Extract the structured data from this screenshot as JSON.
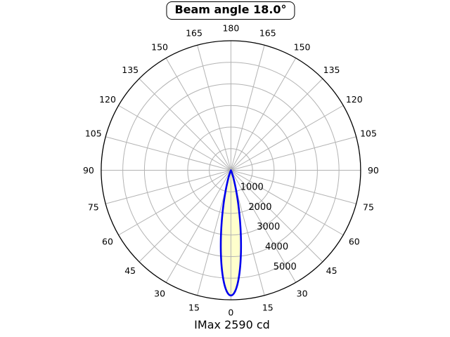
{
  "title": "Beam angle 18.0°",
  "footer": "IMax 2590 cd",
  "chart_data": {
    "type": "polar",
    "title": "Beam angle 18.0°",
    "footnote": "IMax 2590 cd",
    "orientation": "0-degrees-at-bottom",
    "angle_ticks_deg": [
      0,
      15,
      30,
      45,
      60,
      75,
      90,
      105,
      120,
      135,
      150,
      165,
      180
    ],
    "angle_ticks_mirrored_both_sides": true,
    "radial_ticks": [
      1000,
      2000,
      3000,
      4000,
      5000
    ],
    "radial_tick_labels": [
      "1000",
      "2000",
      "3000",
      "4000",
      "5000"
    ],
    "r_max": 6000,
    "radial_label_angle_deg": 22.5,
    "grid": true,
    "beam": {
      "beam_angle_deg": 18.0,
      "fwhm_deg": 18.0,
      "peak_plot_value": 5800,
      "imax_cd": 2590,
      "profile": "gaussian",
      "curve": {
        "angles_deg": [
          0,
          1.5,
          3,
          4.5,
          6,
          7.5,
          9,
          10.5,
          12,
          13.5,
          15,
          16.5,
          18,
          19.5,
          21,
          22.5,
          24,
          25.5,
          27,
          28.5,
          30
        ],
        "values": [
          5800,
          5689,
          5370,
          4877,
          4262,
          3584,
          2900,
          2259,
          1692,
          1219,
          846,
          565,
          363,
          224,
          133,
          76,
          42,
          22,
          11,
          6,
          3
        ],
        "symmetric": true
      }
    },
    "colors": {
      "background": "#ffffff",
      "grid": "#b3b3b3",
      "outline": "#000000",
      "beam_fill": "#ffffcc",
      "beam_stroke": "#0000ee",
      "text": "#000000"
    }
  }
}
